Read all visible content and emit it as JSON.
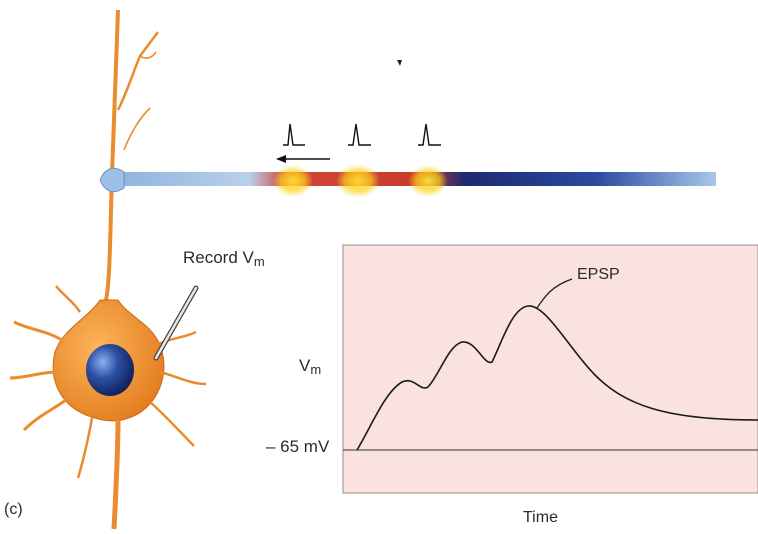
{
  "labels": {
    "record": "Record V",
    "record_subscript": "m",
    "epsp": "EPSP",
    "vm": "V",
    "vm_subscript": "m",
    "baseline": "– 65 mV",
    "time": "Time",
    "panel": "(c)"
  },
  "colors": {
    "plot_background": "#f9e2df",
    "trace": "#1a1a1a",
    "neuron_body": "#f2902c",
    "nucleus": "#2c4fa3",
    "axon_start": "#a9c6e6",
    "axon_hot": "#c8322a",
    "axon_end": "#1b2a78",
    "glow": "#ffd21a"
  },
  "icons": [
    "neuron-illustration",
    "recording-electrode",
    "action-potential-spike",
    "propagation-arrow"
  ]
}
